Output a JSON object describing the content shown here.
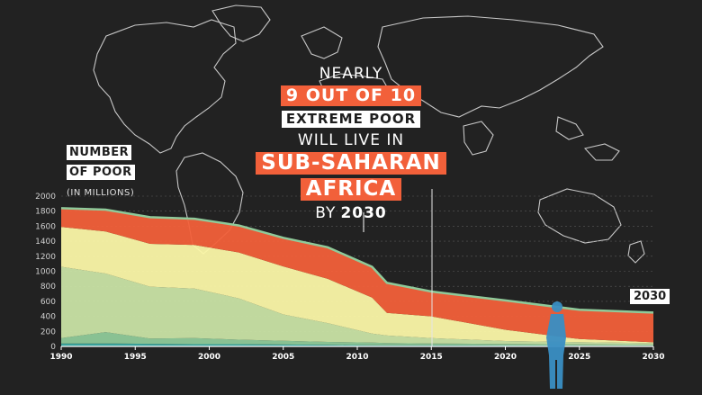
{
  "headline": {
    "line1": "NEARLY",
    "line2": "9 OUT OF 10",
    "line3": "EXTREME POOR",
    "line4": "WILL LIVE IN",
    "line5": "SUB-SAHARAN",
    "line6": "AFRICA",
    "line7_prefix": "BY",
    "line7_year": "2030"
  },
  "y_header": {
    "title_line1": "NUMBER",
    "title_line2": "OF POOR",
    "unit": "(IN MILLIONS)"
  },
  "year_tag": "2030",
  "colors": {
    "background": "#222222",
    "sub_saharan_africa": "#f2603a",
    "south_asia": "#fbf7a8",
    "east_asia_pacific": "#c9e3a5",
    "latin_america": "#8fca9a",
    "other": "#3ba8a0",
    "figure": "#3a8fc4"
  },
  "chart_data": {
    "type": "area",
    "stacked": true,
    "x": [
      1990,
      1993,
      1996,
      1999,
      2002,
      2005,
      2008,
      2011,
      2012,
      2015,
      2020,
      2025,
      2030
    ],
    "x_ticks": [
      1990,
      1995,
      2000,
      2005,
      2010,
      2015,
      2020,
      2025,
      2030
    ],
    "y_ticks": [
      0,
      200,
      400,
      600,
      800,
      1000,
      1200,
      1400,
      1600,
      1800,
      2000
    ],
    "xlim": [
      1990,
      2030
    ],
    "ylim": [
      0,
      2000
    ],
    "grid": true,
    "series": [
      {
        "color_key": "other",
        "values": [
          40,
          40,
          35,
          30,
          30,
          25,
          20,
          15,
          15,
          15,
          12,
          10,
          8
        ]
      },
      {
        "color_key": "latin_america",
        "values": [
          70,
          150,
          70,
          80,
          60,
          50,
          40,
          35,
          30,
          25,
          20,
          18,
          15
        ]
      },
      {
        "color_key": "east_asia_pacific",
        "values": [
          950,
          780,
          690,
          660,
          550,
          350,
          250,
          120,
          100,
          70,
          40,
          30,
          20
        ]
      },
      {
        "color_key": "south_asia",
        "values": [
          530,
          560,
          570,
          580,
          610,
          640,
          590,
          480,
          300,
          290,
          150,
          40,
          12
        ]
      },
      {
        "color_key": "sub_saharan_africa",
        "values": [
          250,
          290,
          355,
          350,
          360,
          380,
          420,
          410,
          400,
          330,
          390,
          390,
          395
        ]
      }
    ]
  }
}
